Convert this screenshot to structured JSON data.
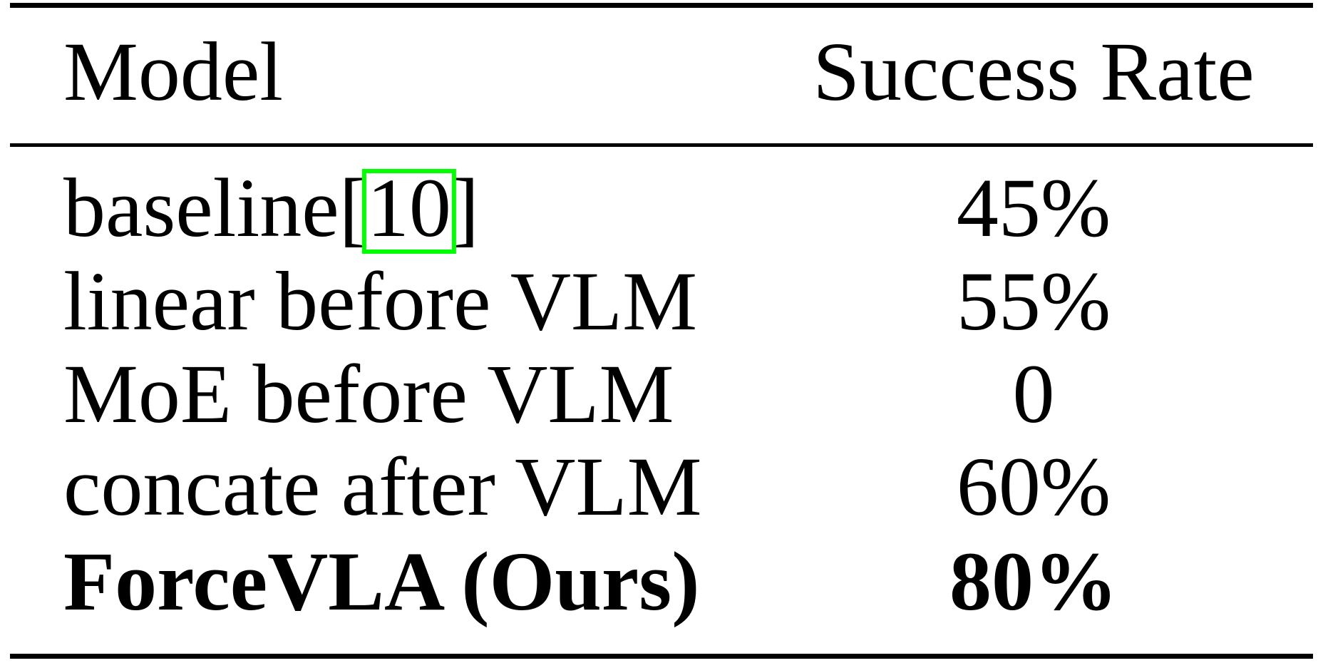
{
  "table": {
    "header": [
      "Model",
      "Success Rate"
    ],
    "rows": [
      {
        "model": [
          "baseline[",
          "10",
          "]"
        ],
        "rate": "45%"
      },
      {
        "model": [
          "linear before VLM"
        ],
        "rate": "55%"
      },
      {
        "model": [
          "MoE before VLM"
        ],
        "rate": "0"
      },
      {
        "model": [
          "concate after VLM"
        ],
        "rate": "60%"
      },
      {
        "model": [
          "ForceVLA (Ours)"
        ],
        "rate": "80%",
        "bold": true
      }
    ]
  }
}
